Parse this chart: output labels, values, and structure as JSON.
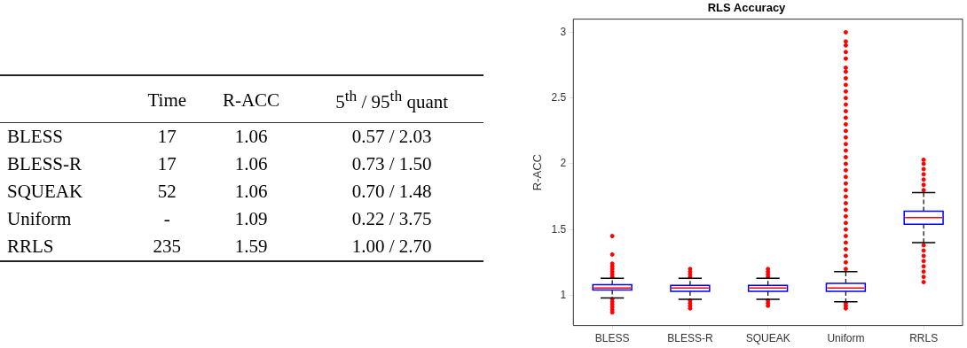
{
  "chart_data": [
    {
      "type": "other",
      "categories": [
        "Time",
        "R-ACC",
        "5$^{th}$ / 95$^{th}$ quant"
      ],
      "y_categories": [
        "BLESS",
        "BLESS-R",
        "SQUEAK",
        "Uniform",
        "RRLS"
      ],
      "cell_labels": [
        [
          "17",
          "1.06",
          "0.57 / 2.03"
        ],
        [
          "17",
          "1.06",
          "0.73 / 1.50"
        ],
        [
          "52",
          "1.06",
          "0.70 / 1.48"
        ],
        [
          "-",
          "1.09",
          "0.22 / 3.75"
        ],
        [
          "235",
          "1.59",
          "1.00 / 2.70"
        ]
      ]
    },
    {
      "type": "box",
      "title": "RLS Accuracy",
      "ylabel": "R-ACC",
      "categories": [
        "BLESS",
        "BLESS-R",
        "SQUEAK",
        "Uniform",
        "RRLS"
      ],
      "color": "#0000ff",
      "boxes": [
        {
          "low": 0.98,
          "q1": 1.04,
          "median": 1.055,
          "q3": 1.08,
          "high": 1.13,
          "outliers": [
            1.45,
            1.31,
            1.24,
            1.22,
            1.2,
            1.18,
            1.16,
            1.14,
            0.97,
            0.95,
            0.93,
            0.91,
            0.89,
            0.87
          ]
        },
        {
          "low": 0.97,
          "q1": 1.03,
          "median": 1.055,
          "q3": 1.075,
          "high": 1.13,
          "outliers": [
            1.2,
            1.18,
            1.16,
            1.14,
            0.96,
            0.94,
            0.92,
            0.9
          ]
        },
        {
          "low": 0.97,
          "q1": 1.03,
          "median": 1.055,
          "q3": 1.075,
          "high": 1.13,
          "outliers": [
            1.2,
            1.18,
            1.16,
            1.14,
            0.96,
            0.94,
            0.92
          ]
        },
        {
          "low": 0.95,
          "q1": 1.03,
          "median": 1.055,
          "q3": 1.09,
          "high": 1.18,
          "outliers": [
            3.0,
            2.93,
            2.9,
            2.85,
            2.8,
            2.73,
            2.7,
            2.65,
            2.6,
            2.55,
            2.5,
            2.45,
            2.4,
            2.35,
            2.3,
            2.25,
            2.2,
            2.15,
            2.1,
            2.05,
            2.0,
            1.95,
            1.9,
            1.85,
            1.8,
            1.75,
            1.7,
            1.65,
            1.6,
            1.55,
            1.5,
            1.45,
            1.4,
            1.35,
            1.3,
            1.25,
            1.2,
            0.94,
            0.92,
            0.9
          ]
        },
        {
          "low": 1.4,
          "q1": 1.54,
          "median": 1.59,
          "q3": 1.64,
          "high": 1.78,
          "outliers": [
            2.03,
            2.0,
            1.96,
            1.92,
            1.88,
            1.84,
            1.8,
            1.38,
            1.34,
            1.3,
            1.26,
            1.22,
            1.18,
            1.14,
            1.1
          ]
        }
      ],
      "ylim": [
        0.77,
        3.1
      ],
      "yticks": [
        1,
        1.5,
        2,
        2.5,
        3
      ],
      "grid": false
    }
  ]
}
